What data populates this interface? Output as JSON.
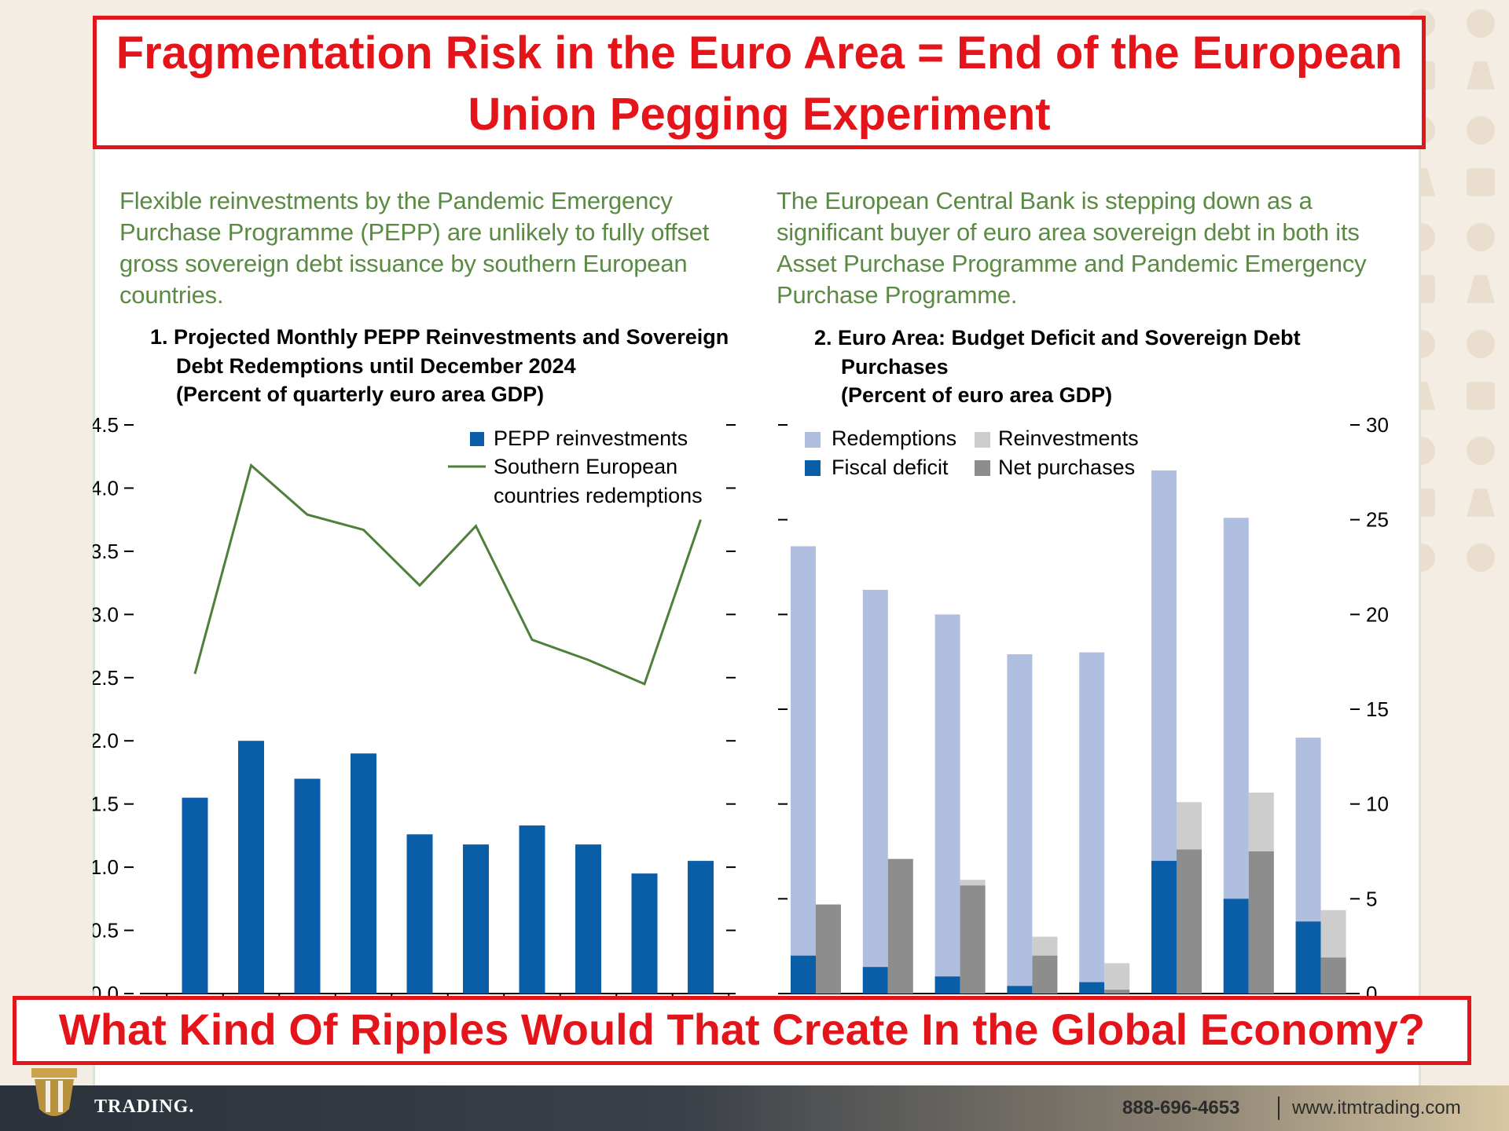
{
  "header": {
    "title": "Fragmentation Risk in the Euro Area = End of the European Union Pegging Experiment",
    "question": "What Kind Of Ripples Would That Create In the Global Economy?"
  },
  "intro": {
    "left": "Flexible reinvestments by the Pandemic Emergency Purchase Programme (PEPP) are unlikely to fully offset gross sovereign debt issuance by southern European countries.",
    "right": "The European Central Bank is stepping down as a significant buyer of euro area sovereign debt in both its Asset Purchase Programme and Pandemic Emergency Purchase Programme."
  },
  "footer": {
    "logo_text": "TRADING.",
    "phone": "888-696-4653",
    "website": "www.itmtrading.com"
  },
  "colors": {
    "banner_red": "#e3151a",
    "intro_green": "#5a8a43",
    "bar_blue": "#0a5ea8",
    "line_green": "#4f7f3a",
    "redemptions": "#b0bfe0",
    "fiscal_deficit": "#0a5ea8",
    "reinvestments": "#cdcdcd",
    "net_purchases": "#8d8d8d"
  },
  "chart_data": [
    {
      "type": "bar",
      "title_lines": [
        "1. Projected Monthly PEPP Reinvestments and Sovereign",
        "Debt Redemptions until December 2024",
        "(Percent of quarterly euro area GDP)"
      ],
      "ylim": [
        0,
        4.5
      ],
      "yticks": [
        "0.0",
        "0.5",
        "1.0",
        "1.5",
        "2.0",
        "2.5",
        "3.0",
        "3.5",
        "4.0",
        "4.5"
      ],
      "series": [
        {
          "name": "PEPP reinvestments",
          "kind": "bar",
          "values": [
            1.55,
            2.0,
            1.7,
            1.9,
            1.26,
            1.18,
            1.33,
            1.18,
            0.95,
            1.05
          ]
        },
        {
          "name": "Southern European countries redemptions",
          "kind": "line",
          "values": [
            2.53,
            4.18,
            3.79,
            3.67,
            3.23,
            3.7,
            2.8,
            2.64,
            2.45,
            3.75
          ]
        }
      ],
      "legend": {
        "position": "top-right",
        "labels": [
          "PEPP reinvestments",
          "Southern European",
          "countries redemptions"
        ]
      }
    },
    {
      "type": "bar",
      "title_lines": [
        "2. Euro Area: Budget Deficit and Sovereign Debt",
        "Purchases",
        "(Percent of euro area GDP)"
      ],
      "ylim": [
        0,
        30
      ],
      "yticks": [
        "0",
        "5",
        "10",
        "15",
        "20",
        "25",
        "30"
      ],
      "series": [
        {
          "name": "Redemptions",
          "values": [
            23.6,
            21.3,
            20.0,
            17.9,
            18.0,
            27.6,
            25.1,
            13.5
          ]
        },
        {
          "name": "Fiscal deficit",
          "values": [
            2.0,
            1.4,
            0.9,
            0.4,
            0.6,
            7.0,
            5.0,
            3.8
          ]
        },
        {
          "name": "Reinvestments",
          "values": [
            4.6,
            7.1,
            6.0,
            3.0,
            1.6,
            10.1,
            10.6,
            4.4
          ]
        },
        {
          "name": "Net purchases",
          "values": [
            4.7,
            7.1,
            5.7,
            2.0,
            0.2,
            7.6,
            7.5,
            1.9
          ]
        }
      ],
      "legend": {
        "position": "top-left",
        "labels": [
          "Redemptions",
          "Reinvestments",
          "Fiscal deficit",
          "Net purchases"
        ]
      }
    }
  ]
}
